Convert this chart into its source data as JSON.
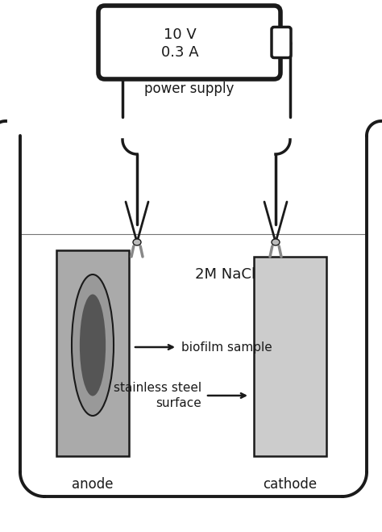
{
  "bg_color": "#ffffff",
  "line_color": "#1a1a1a",
  "gray_electrode_dark": "#aaaaaa",
  "gray_electrode_light": "#cccccc",
  "dark_biofilm": "#555555",
  "mid_biofilm": "#999999",
  "power_box_text_line1": "10 V",
  "power_box_text_line2": "0.3 A",
  "power_supply_label": "power supply",
  "nacl_label": "2M NaCl",
  "biofilm_label": "biofilm sample",
  "steel_label_line1": "stainless steel",
  "steel_label_line2": "surface",
  "anode_label": "anode",
  "cathode_label": "cathode",
  "fig_width": 4.74,
  "fig_height": 6.59,
  "dpi": 100
}
